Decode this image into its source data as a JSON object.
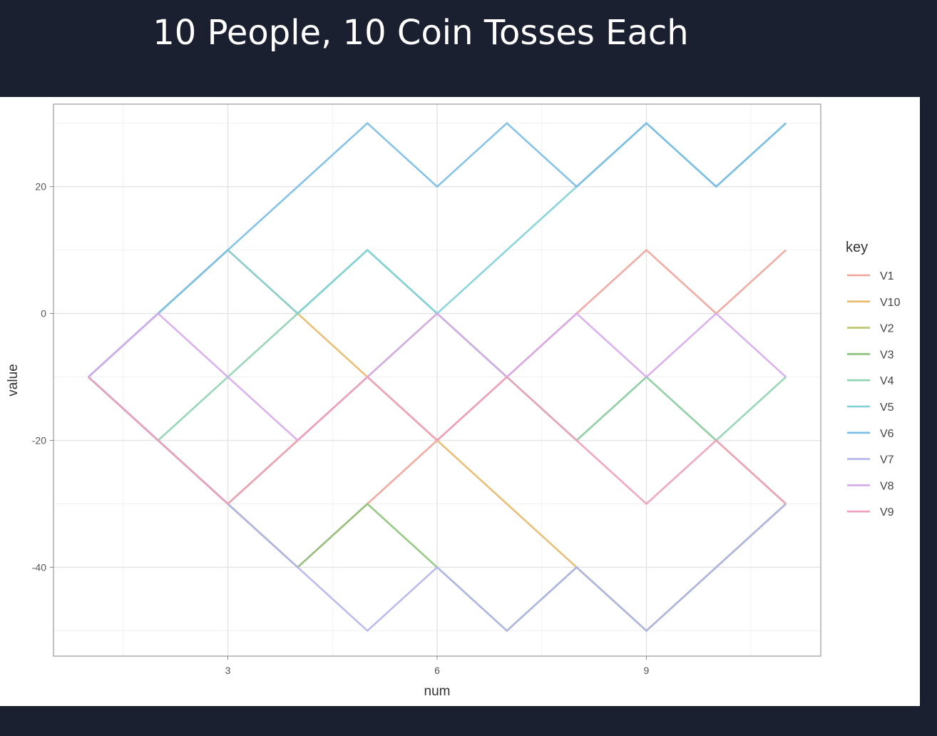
{
  "slide": {
    "title": "10 People, 10 Coin Tosses Each"
  },
  "chart_data": {
    "type": "line",
    "title": "",
    "xlabel": "num",
    "ylabel": "value",
    "xlim": [
      0.5,
      11.5
    ],
    "ylim": [
      -54,
      33
    ],
    "x_ticks": [
      3,
      6,
      9
    ],
    "y_ticks": [
      -40,
      -20,
      0,
      20
    ],
    "grid": true,
    "legend": {
      "title": "key",
      "position": "right"
    },
    "x": [
      1,
      2,
      3,
      4,
      5,
      6,
      7,
      8,
      9,
      10,
      11
    ],
    "series": [
      {
        "name": "V1",
        "color": "#f1a39a",
        "values": [
          -10,
          -20,
          -30,
          -40,
          -30,
          -20,
          -10,
          0,
          10,
          0,
          10
        ]
      },
      {
        "name": "V10",
        "color": "#e7b96a",
        "values": [
          -10,
          0,
          10,
          0,
          -10,
          -20,
          -30,
          -40,
          -50,
          -40,
          -30
        ]
      },
      {
        "name": "V2",
        "color": "#bcc46d",
        "values": [
          -10,
          -20,
          -30,
          -20,
          -10,
          0,
          -10,
          -20,
          -10,
          -20,
          -30
        ]
      },
      {
        "name": "V3",
        "color": "#8cc37a",
        "values": [
          -10,
          -20,
          -30,
          -40,
          -30,
          -40,
          -50,
          -40,
          -50,
          -40,
          -30
        ]
      },
      {
        "name": "V4",
        "color": "#8fd2b0",
        "values": [
          -10,
          -20,
          -10,
          0,
          10,
          0,
          -10,
          -20,
          -10,
          -20,
          -10
        ]
      },
      {
        "name": "V5",
        "color": "#7fd0d6",
        "values": [
          -10,
          0,
          10,
          0,
          10,
          0,
          10,
          20,
          30,
          20,
          30
        ]
      },
      {
        "name": "V6",
        "color": "#79bde6",
        "values": [
          -10,
          0,
          10,
          20,
          30,
          20,
          30,
          20,
          30,
          20,
          30
        ]
      },
      {
        "name": "V7",
        "color": "#b3b5ec",
        "values": [
          -10,
          -20,
          -30,
          -40,
          -50,
          -40,
          -50,
          -40,
          -50,
          -40,
          -30
        ]
      },
      {
        "name": "V8",
        "color": "#d7a8ec",
        "values": [
          -10,
          0,
          -10,
          -20,
          -10,
          0,
          -10,
          0,
          -10,
          0,
          -10
        ]
      },
      {
        "name": "V9",
        "color": "#ef9fbd",
        "values": [
          -10,
          -20,
          -30,
          -20,
          -10,
          -20,
          -10,
          -20,
          -30,
          -20,
          -30
        ]
      }
    ]
  }
}
